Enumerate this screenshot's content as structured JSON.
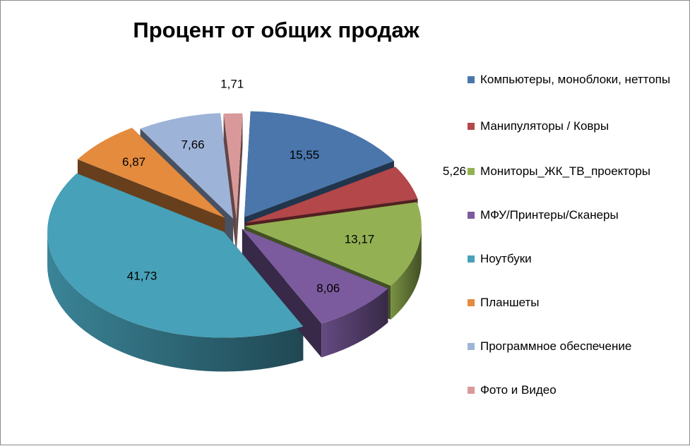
{
  "chart_data": {
    "type": "pie",
    "title": "Процент от общих продаж",
    "legend_position": "right",
    "categories": [
      "Компьютеры, моноблоки, неттопы",
      "Манипуляторы / Ковры",
      "Мониторы_ЖК_ТВ_проекторы",
      "МФУ/Принтеры/Сканеры",
      "Ноутбуки",
      "Планшеты",
      "Программное обеспечение",
      "Фото и Видео"
    ],
    "values": [
      15.55,
      5.26,
      13.17,
      8.06,
      41.73,
      6.87,
      7.66,
      1.71
    ],
    "value_labels": [
      "15,55",
      "5,26",
      "13,17",
      "8,06",
      "41,73",
      "6,87",
      "7,66",
      "1,71"
    ],
    "colors": [
      "#4a76ab",
      "#b3474a",
      "#93b152",
      "#7b5b9d",
      "#47a1b8",
      "#e48b3e",
      "#9eb3d8",
      "#d9999a"
    ],
    "exploded": true
  }
}
